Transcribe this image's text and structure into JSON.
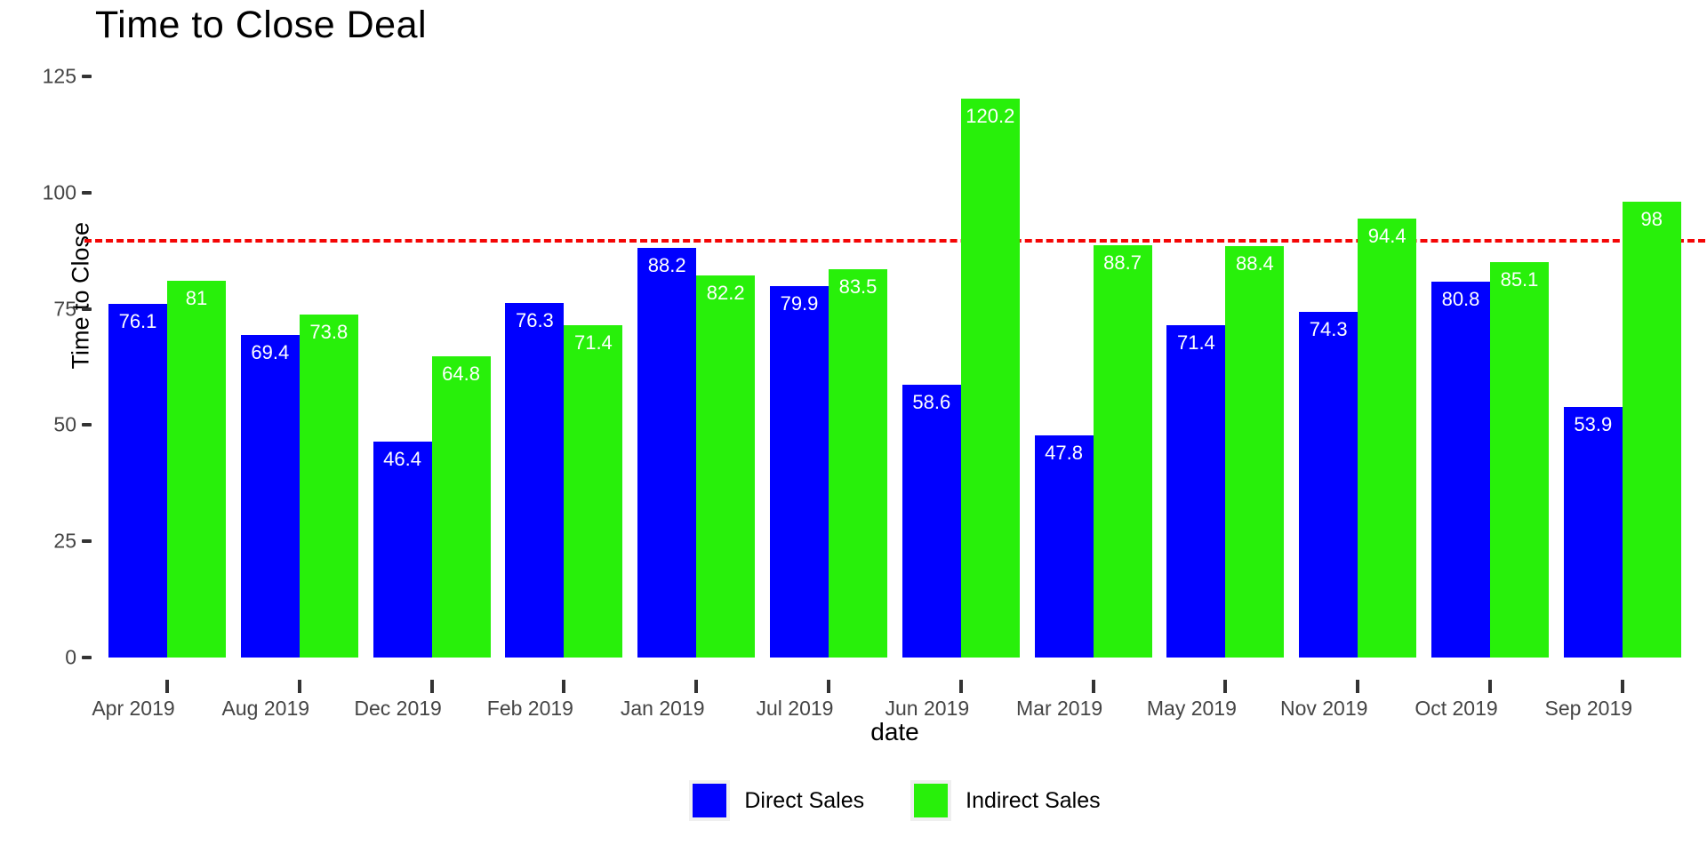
{
  "chart_data": {
    "type": "bar",
    "title": "Time to Close Deal",
    "xlabel": "date",
    "ylabel": "Time to Close",
    "categories": [
      "Apr 2019",
      "Aug 2019",
      "Dec 2019",
      "Feb 2019",
      "Jan 2019",
      "Jul 2019",
      "Jun 2019",
      "Mar 2019",
      "May 2019",
      "Nov 2019",
      "Oct 2019",
      "Sep 2019"
    ],
    "series": [
      {
        "name": "Direct Sales",
        "color": "#0000FF",
        "values": [
          76.1,
          69.4,
          46.4,
          76.3,
          88.2,
          79.9,
          58.6,
          47.8,
          71.4,
          74.3,
          80.8,
          53.9
        ],
        "labels": [
          "76.1",
          "69.4",
          "46.4",
          "76.3",
          "88.2",
          "79.9",
          "58.6",
          "47.8",
          "71.4",
          "74.3",
          "80.8",
          "53.9"
        ]
      },
      {
        "name": "Indirect Sales",
        "color": "#28F00A",
        "values": [
          81,
          73.8,
          64.8,
          71.4,
          82.2,
          83.5,
          120.2,
          88.7,
          88.4,
          94.4,
          85.1,
          98
        ],
        "labels": [
          "81",
          "73.8",
          "64.8",
          "71.4",
          "82.2",
          "83.5",
          "120.2",
          "88.7",
          "88.4",
          "94.4",
          "85.1",
          "98"
        ]
      }
    ],
    "yticks": [
      "0",
      "25",
      "50",
      "75",
      "100",
      "125"
    ],
    "ytick_values": [
      0,
      25,
      50,
      75,
      100,
      125
    ],
    "ylim": [
      0,
      125
    ],
    "grid": "off",
    "legend_position": "bottom",
    "reference_line": {
      "value": 90,
      "color": "#F40606",
      "style": "dashed"
    },
    "bar_label_color": "#FFFFFF",
    "axis_text_color": "#454545"
  }
}
